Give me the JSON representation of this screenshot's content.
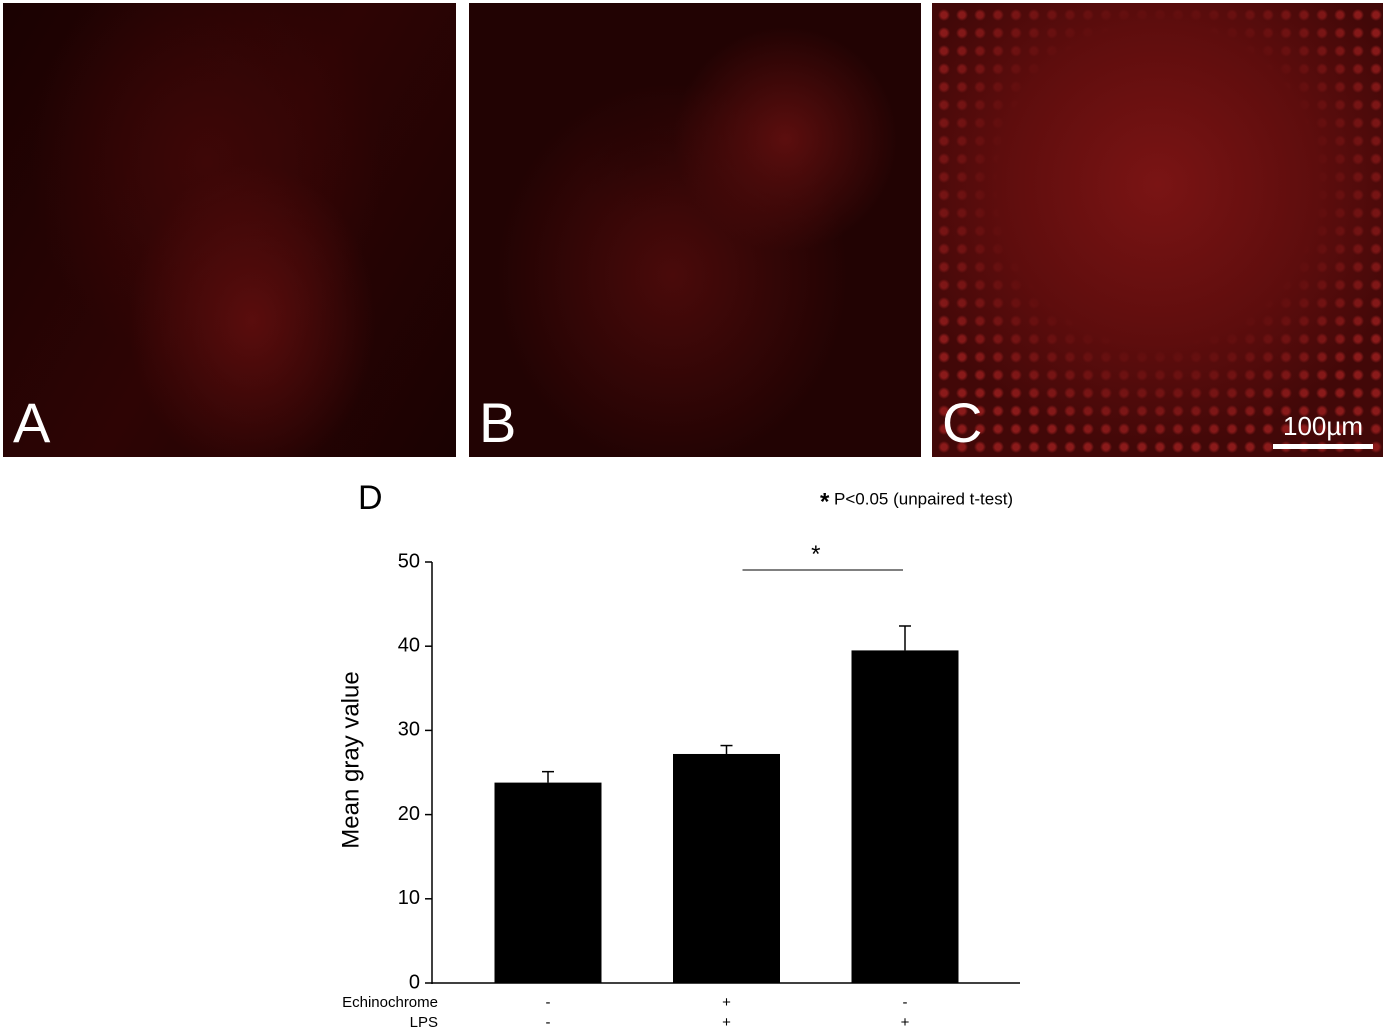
{
  "images": [
    {
      "label": "A"
    },
    {
      "label": "B"
    },
    {
      "label": "C",
      "scale_bar": "100µm"
    }
  ],
  "chart_data": {
    "type": "bar",
    "panel_label": "D",
    "note_marker": "*",
    "note": "P<0.05 (unpaired t-test)",
    "ylabel": "Mean gray value",
    "categories": [
      null,
      null,
      null
    ],
    "values": [
      23.8,
      27.2,
      39.5
    ],
    "errors": [
      1.3,
      1.0,
      2.9
    ],
    "color": "#000000",
    "ylim": [
      0,
      50
    ],
    "yticks": [
      0,
      10,
      20,
      30,
      40,
      50
    ],
    "conditions": [
      {
        "name": "Echinochrome",
        "values": [
          "-",
          "+",
          "-"
        ]
      },
      {
        "name": "LPS",
        "values": [
          "-",
          "+",
          "+"
        ]
      }
    ],
    "significance": "*"
  }
}
